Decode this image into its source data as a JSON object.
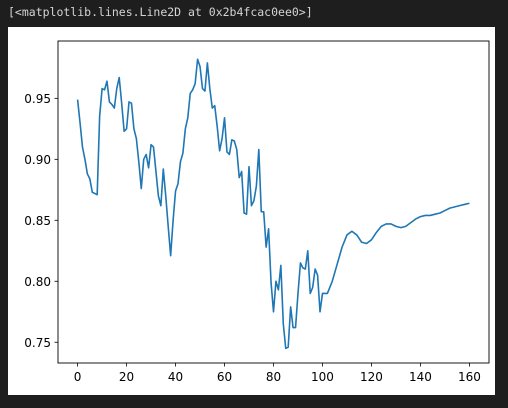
{
  "output": {
    "repr_text": "[<matplotlib.lines.Line2D at 0x2b4fcac0ee0>]"
  },
  "chart_data": {
    "type": "line",
    "title": "",
    "xlabel": "",
    "ylabel": "",
    "xlim": [
      -8,
      168
    ],
    "ylim": [
      0.733,
      0.997
    ],
    "x_ticks": [
      0,
      20,
      40,
      60,
      80,
      100,
      120,
      140,
      160
    ],
    "y_ticks": [
      0.75,
      0.8,
      0.85,
      0.9,
      0.95
    ],
    "x_tick_labels": [
      "0",
      "20",
      "40",
      "60",
      "80",
      "100",
      "120",
      "140",
      "160"
    ],
    "y_tick_labels": [
      "0.75",
      "0.80",
      "0.85",
      "0.90",
      "0.95"
    ],
    "grid": false,
    "series": [
      {
        "color": "#1f77b4",
        "x": [
          0,
          1,
          2,
          3,
          4,
          5,
          6,
          7,
          8,
          9,
          10,
          11,
          12,
          13,
          14,
          15,
          16,
          17,
          18,
          19,
          20,
          21,
          22,
          23,
          24,
          25,
          26,
          27,
          28,
          29,
          30,
          31,
          32,
          33,
          34,
          35,
          36,
          37,
          38,
          39,
          40,
          41,
          42,
          43,
          44,
          45,
          46,
          47,
          48,
          49,
          50,
          51,
          52,
          53,
          54,
          55,
          56,
          57,
          58,
          59,
          60,
          61,
          62,
          63,
          64,
          65,
          66,
          67,
          68,
          69,
          70,
          71,
          72,
          73,
          74,
          75,
          76,
          77,
          78,
          79,
          80,
          81,
          82,
          83,
          84,
          85,
          86,
          87,
          88,
          89,
          90,
          91,
          92,
          93,
          94,
          95,
          96,
          97,
          98,
          99,
          100,
          102,
          104,
          106,
          108,
          110,
          112,
          114,
          116,
          118,
          120,
          122,
          124,
          126,
          128,
          130,
          132,
          134,
          136,
          138,
          140,
          142,
          144,
          146,
          148,
          150,
          152,
          154,
          156,
          158,
          160
        ],
        "y": [
          0.949,
          0.93,
          0.91,
          0.9,
          0.888,
          0.884,
          0.873,
          0.872,
          0.871,
          0.935,
          0.958,
          0.957,
          0.964,
          0.947,
          0.945,
          0.942,
          0.958,
          0.967,
          0.946,
          0.923,
          0.925,
          0.947,
          0.946,
          0.925,
          0.917,
          0.898,
          0.876,
          0.9,
          0.904,
          0.893,
          0.912,
          0.91,
          0.89,
          0.87,
          0.862,
          0.892,
          0.87,
          0.845,
          0.821,
          0.85,
          0.874,
          0.88,
          0.898,
          0.905,
          0.925,
          0.934,
          0.954,
          0.957,
          0.962,
          0.982,
          0.976,
          0.958,
          0.956,
          0.979,
          0.958,
          0.942,
          0.944,
          0.927,
          0.907,
          0.917,
          0.934,
          0.906,
          0.904,
          0.916,
          0.915,
          0.908,
          0.885,
          0.89,
          0.856,
          0.855,
          0.894,
          0.862,
          0.866,
          0.878,
          0.908,
          0.857,
          0.857,
          0.828,
          0.843,
          0.799,
          0.775,
          0.8,
          0.793,
          0.813,
          0.765,
          0.745,
          0.746,
          0.779,
          0.762,
          0.762,
          0.79,
          0.815,
          0.811,
          0.81,
          0.825,
          0.79,
          0.795,
          0.81,
          0.805,
          0.775,
          0.79,
          0.79,
          0.8,
          0.814,
          0.828,
          0.838,
          0.841,
          0.838,
          0.832,
          0.831,
          0.834,
          0.84,
          0.845,
          0.847,
          0.847,
          0.845,
          0.844,
          0.845,
          0.848,
          0.851,
          0.853,
          0.854,
          0.854,
          0.855,
          0.856,
          0.858,
          0.86,
          0.861,
          0.862,
          0.863,
          0.864
        ]
      }
    ]
  }
}
